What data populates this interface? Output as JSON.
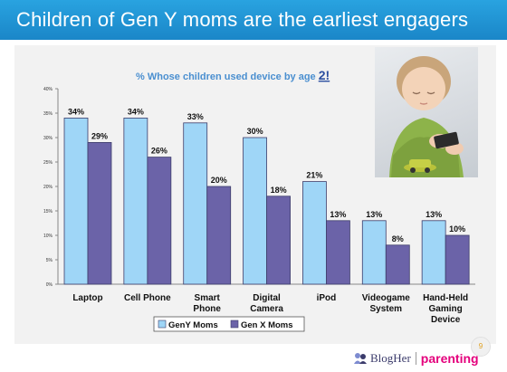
{
  "slide": {
    "title": "Children of Gen Y moms are the earliest engagers",
    "page_number": "9"
  },
  "footer": {
    "brand1": "BlogHer",
    "brand2": "parenting"
  },
  "photo": {
    "icon": "child-with-phone-photo"
  },
  "colors": {
    "title_bar": "#1e90d2",
    "geny": "#9fd6f7",
    "genx": "#6b63a8",
    "subtitle": "#4a8fd0"
  },
  "chart_data": {
    "type": "bar",
    "title_prefix": "% Whose children used device by age",
    "title_highlight": "2!",
    "categories": [
      [
        "Laptop"
      ],
      [
        "Cell Phone"
      ],
      [
        "Smart",
        "Phone"
      ],
      [
        "Digital",
        "Camera"
      ],
      [
        "iPod"
      ],
      [
        "Videogame",
        "System"
      ],
      [
        "Hand-Held",
        "Gaming",
        "Device"
      ]
    ],
    "series": [
      {
        "name": "GenY Moms",
        "values": [
          34,
          34,
          33,
          30,
          21,
          13,
          13
        ],
        "color": "#9fd6f7"
      },
      {
        "name": "Gen X Moms",
        "values": [
          29,
          26,
          20,
          18,
          13,
          8,
          10
        ],
        "color": "#6b63a8"
      }
    ],
    "value_suffix": "%",
    "ylim": [
      0,
      40
    ],
    "yticks": [
      "0%",
      "5%",
      "10%",
      "15%",
      "20%",
      "25%",
      "30%",
      "35%",
      "40%"
    ],
    "xlabel": "",
    "ylabel": "",
    "grid": false,
    "legend_position": "bottom"
  }
}
